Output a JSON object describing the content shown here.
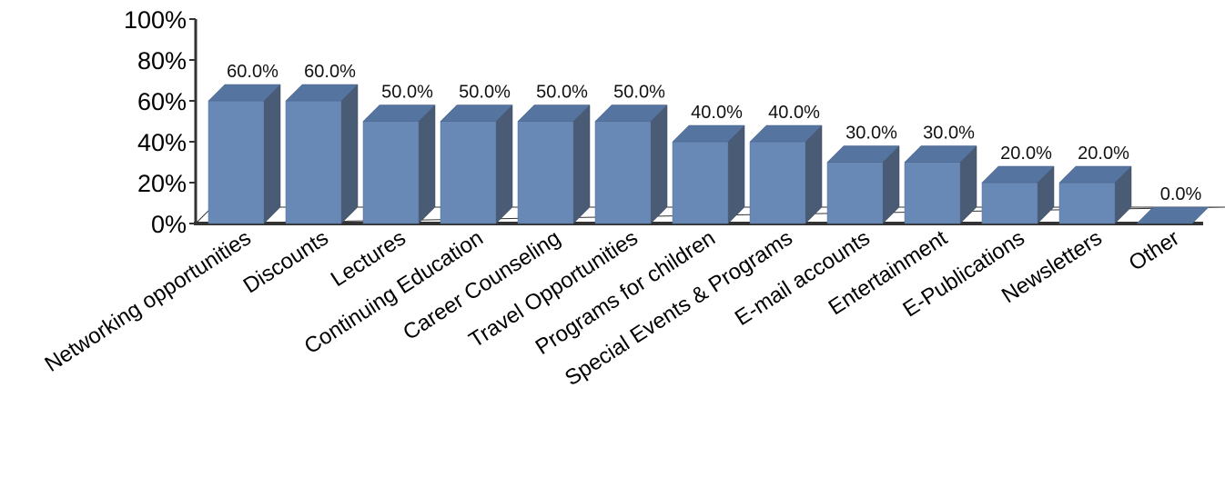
{
  "chart_data": {
    "type": "bar",
    "title": "",
    "xlabel": "",
    "ylabel": "",
    "categories": [
      "Networking opportunities",
      "Discounts",
      "Lectures",
      "Continuing Education",
      "Career Counseling",
      "Travel Opportunities",
      "Programs for children",
      "Special Events & Programs",
      "E-mail accounts",
      "Entertainment",
      "E-Publications",
      "Newsletters",
      "Other"
    ],
    "values": [
      60,
      60,
      50,
      50,
      50,
      50,
      40,
      40,
      30,
      30,
      20,
      20,
      0
    ],
    "value_labels": [
      "60.0%",
      "60.0%",
      "50.0%",
      "50.0%",
      "50.0%",
      "50.0%",
      "40.0%",
      "40.0%",
      "30.0%",
      "30.0%",
      "20.0%",
      "20.0%",
      "0.0%"
    ],
    "ylim": [
      0,
      100
    ],
    "y_ticks": [
      "0%",
      "20%",
      "40%",
      "60%",
      "80%",
      "100%"
    ],
    "grid": false,
    "legend": "none",
    "style": "3d-bars",
    "colors": {
      "front": "#6889b5",
      "top": "#5574a0",
      "side": "#4a5b76"
    }
  }
}
